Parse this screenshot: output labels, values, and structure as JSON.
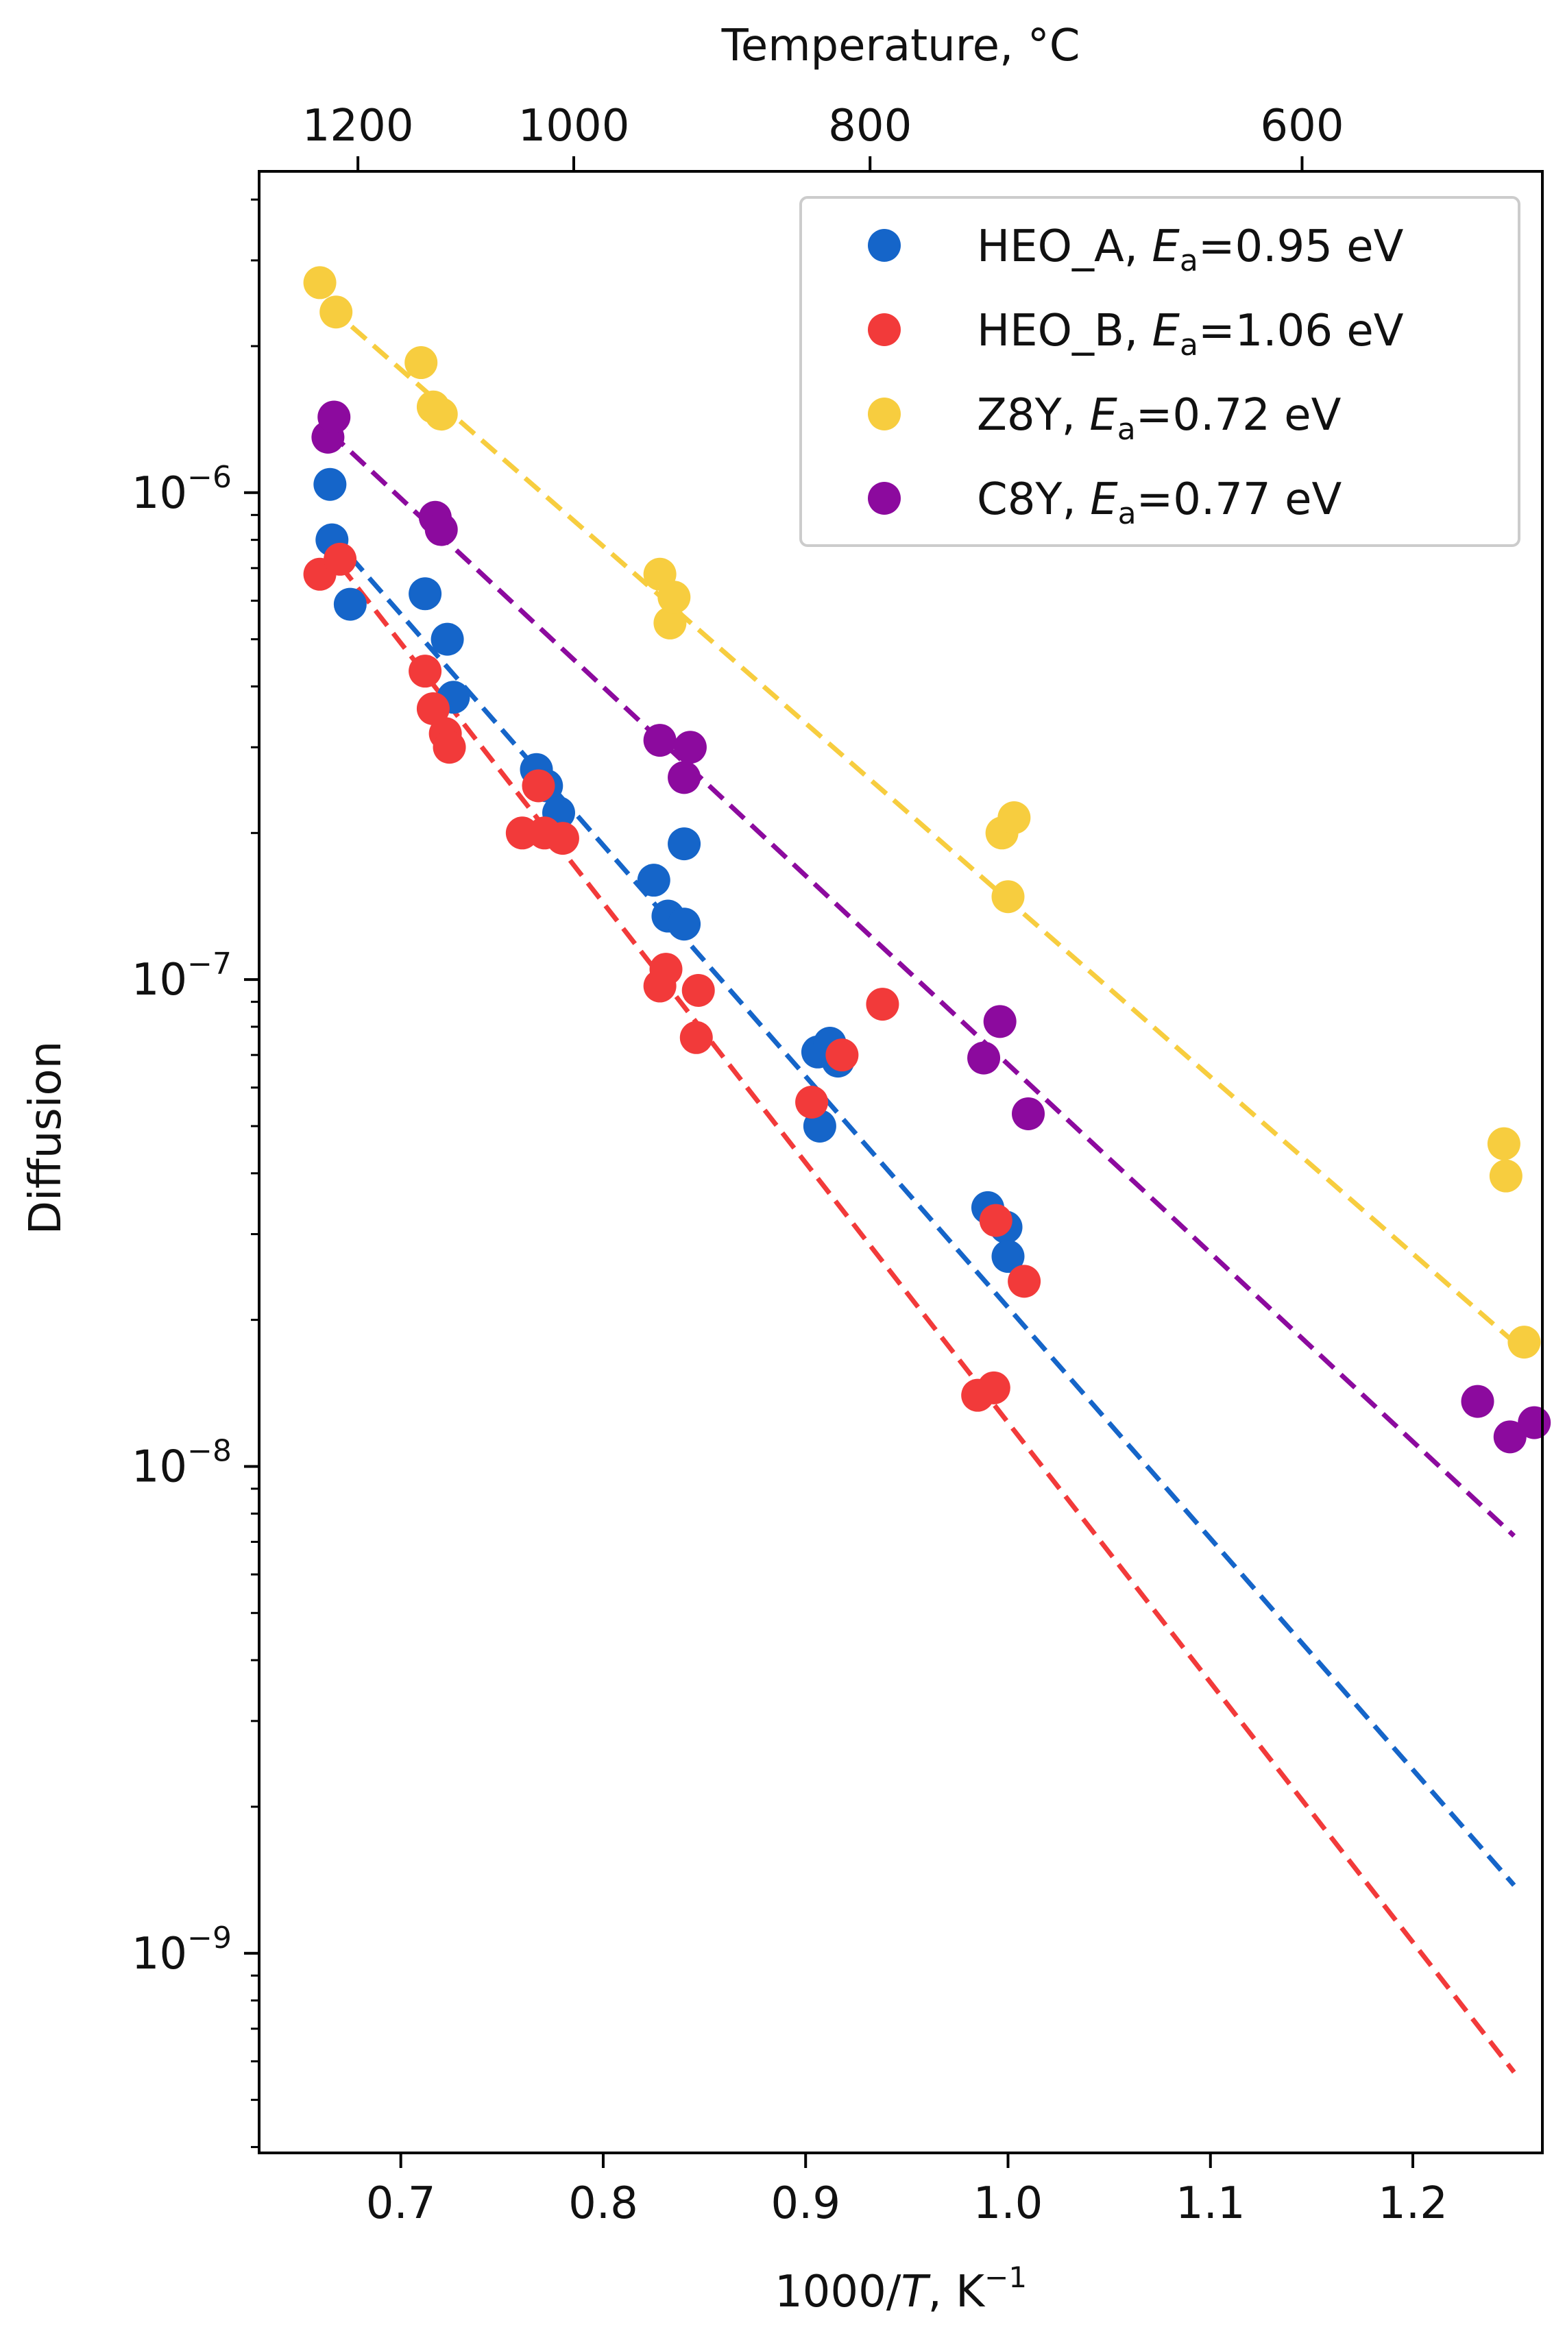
{
  "chart_data": {
    "type": "scatter",
    "title": "",
    "xlabel": {
      "prefix": "1000/",
      "italic": "T",
      "suffix": ", K",
      "sup": "−1"
    },
    "ylabel": "Diffusion",
    "top_axis": {
      "label": "Temperature, °C",
      "ticks": [
        {
          "celsius": 1200,
          "label": "1200"
        },
        {
          "celsius": 1000,
          "label": "1000"
        },
        {
          "celsius": 800,
          "label": "800"
        },
        {
          "celsius": 600,
          "label": "600"
        }
      ]
    },
    "xlim": [
      0.63,
      1.264
    ],
    "ylim_log10": [
      -9.41,
      -5.34
    ],
    "yscale": "log",
    "xticks": [
      {
        "value": 0.7,
        "label": "0.7"
      },
      {
        "value": 0.8,
        "label": "0.8"
      },
      {
        "value": 0.9,
        "label": "0.9"
      },
      {
        "value": 1.0,
        "label": "1.0"
      },
      {
        "value": 1.1,
        "label": "1.1"
      },
      {
        "value": 1.2,
        "label": "1.2"
      }
    ],
    "yticks": [
      {
        "exp": -9,
        "base": "10",
        "sup": "−9"
      },
      {
        "exp": -8,
        "base": "10",
        "sup": "−8"
      },
      {
        "exp": -7,
        "base": "10",
        "sup": "−7"
      },
      {
        "exp": -6,
        "base": "10",
        "sup": "−6"
      }
    ],
    "legend_position": "top-right",
    "series": [
      {
        "name": "HEO_A",
        "ea_sym": "E",
        "ea_sub": "a",
        "ea_value": "=0.95 eV",
        "color": "#1565c9",
        "fit": {
          "x": [
            0.675,
            1.25
          ],
          "y": [
            7.4e-07,
            1.38e-09
          ]
        },
        "points": [
          [
            0.665,
            1.04e-06
          ],
          [
            0.666,
            8e-07
          ],
          [
            0.675,
            5.9e-07
          ],
          [
            0.712,
            6.2e-07
          ],
          [
            0.723,
            5e-07
          ],
          [
            0.726,
            3.8e-07
          ],
          [
            0.767,
            2.7e-07
          ],
          [
            0.772,
            2.5e-07
          ],
          [
            0.778,
            2.2e-07
          ],
          [
            0.825,
            1.6e-07
          ],
          [
            0.832,
            1.35e-07
          ],
          [
            0.84,
            1.3e-07
          ],
          [
            0.84,
            1.9e-07
          ],
          [
            0.906,
            7.1e-08
          ],
          [
            0.907,
            5e-08
          ],
          [
            0.912,
            7.4e-08
          ],
          [
            0.916,
            6.8e-08
          ],
          [
            0.99,
            3.4e-08
          ],
          [
            0.999,
            3.1e-08
          ],
          [
            1.0,
            2.7e-08
          ]
        ]
      },
      {
        "name": "HEO_B",
        "ea_sym": "E",
        "ea_sub": "a",
        "ea_value": "=1.06 eV",
        "color": "#f23a3a",
        "fit": {
          "x": [
            0.67,
            1.25
          ],
          "y": [
            7.1e-07,
            5.7e-10
          ]
        },
        "points": [
          [
            0.66,
            6.8e-07
          ],
          [
            0.67,
            7.3e-07
          ],
          [
            0.712,
            4.3e-07
          ],
          [
            0.716,
            3.6e-07
          ],
          [
            0.722,
            3.2e-07
          ],
          [
            0.724,
            3e-07
          ],
          [
            0.76,
            2e-07
          ],
          [
            0.768,
            2.5e-07
          ],
          [
            0.771,
            2e-07
          ],
          [
            0.78,
            1.95e-07
          ],
          [
            0.828,
            9.7e-08
          ],
          [
            0.831,
            1.05e-07
          ],
          [
            0.846,
            7.6e-08
          ],
          [
            0.847,
            9.5e-08
          ],
          [
            0.903,
            5.6e-08
          ],
          [
            0.918,
            7e-08
          ],
          [
            0.938,
            8.9e-08
          ],
          [
            0.985,
            1.4e-08
          ],
          [
            0.993,
            1.45e-08
          ],
          [
            0.994,
            3.2e-08
          ],
          [
            1.008,
            2.4e-08
          ]
        ]
      },
      {
        "name": "Z8Y",
        "ea_sym": "E",
        "ea_sub": "a",
        "ea_value": "=0.72 eV",
        "color": "#f7cd3f",
        "fit": {
          "x": [
            0.665,
            1.25
          ],
          "y": [
            2.4e-06,
            1.8e-08
          ]
        },
        "points": [
          [
            0.66,
            2.7e-06
          ],
          [
            0.668,
            2.35e-06
          ],
          [
            0.71,
            1.85e-06
          ],
          [
            0.716,
            1.5e-06
          ],
          [
            0.72,
            1.45e-06
          ],
          [
            0.828,
            6.8e-07
          ],
          [
            0.833,
            5.4e-07
          ],
          [
            0.835,
            6.1e-07
          ],
          [
            0.997,
            2e-07
          ],
          [
            1.0,
            1.48e-07
          ],
          [
            1.003,
            2.15e-07
          ],
          [
            1.245,
            4.6e-08
          ],
          [
            1.246,
            3.95e-08
          ],
          [
            1.255,
            1.8e-08
          ]
        ]
      },
      {
        "name": "C8Y",
        "ea_sym": "E",
        "ea_sub": "a",
        "ea_value": "=0.77 eV",
        "color": "#8c0a9e",
        "fit": {
          "x": [
            0.665,
            1.25
          ],
          "y": [
            1.33e-06,
            7.2e-09
          ]
        },
        "points": [
          [
            0.664,
            1.3e-06
          ],
          [
            0.667,
            1.43e-06
          ],
          [
            0.717,
            8.9e-07
          ],
          [
            0.72,
            8.4e-07
          ],
          [
            0.828,
            3.1e-07
          ],
          [
            0.84,
            2.6e-07
          ],
          [
            0.843,
            3e-07
          ],
          [
            0.988,
            6.9e-08
          ],
          [
            0.996,
            8.2e-08
          ],
          [
            1.01,
            5.3e-08
          ],
          [
            1.232,
            1.36e-08
          ],
          [
            1.248,
            1.15e-08
          ],
          [
            1.26,
            1.23e-08
          ]
        ]
      }
    ]
  }
}
